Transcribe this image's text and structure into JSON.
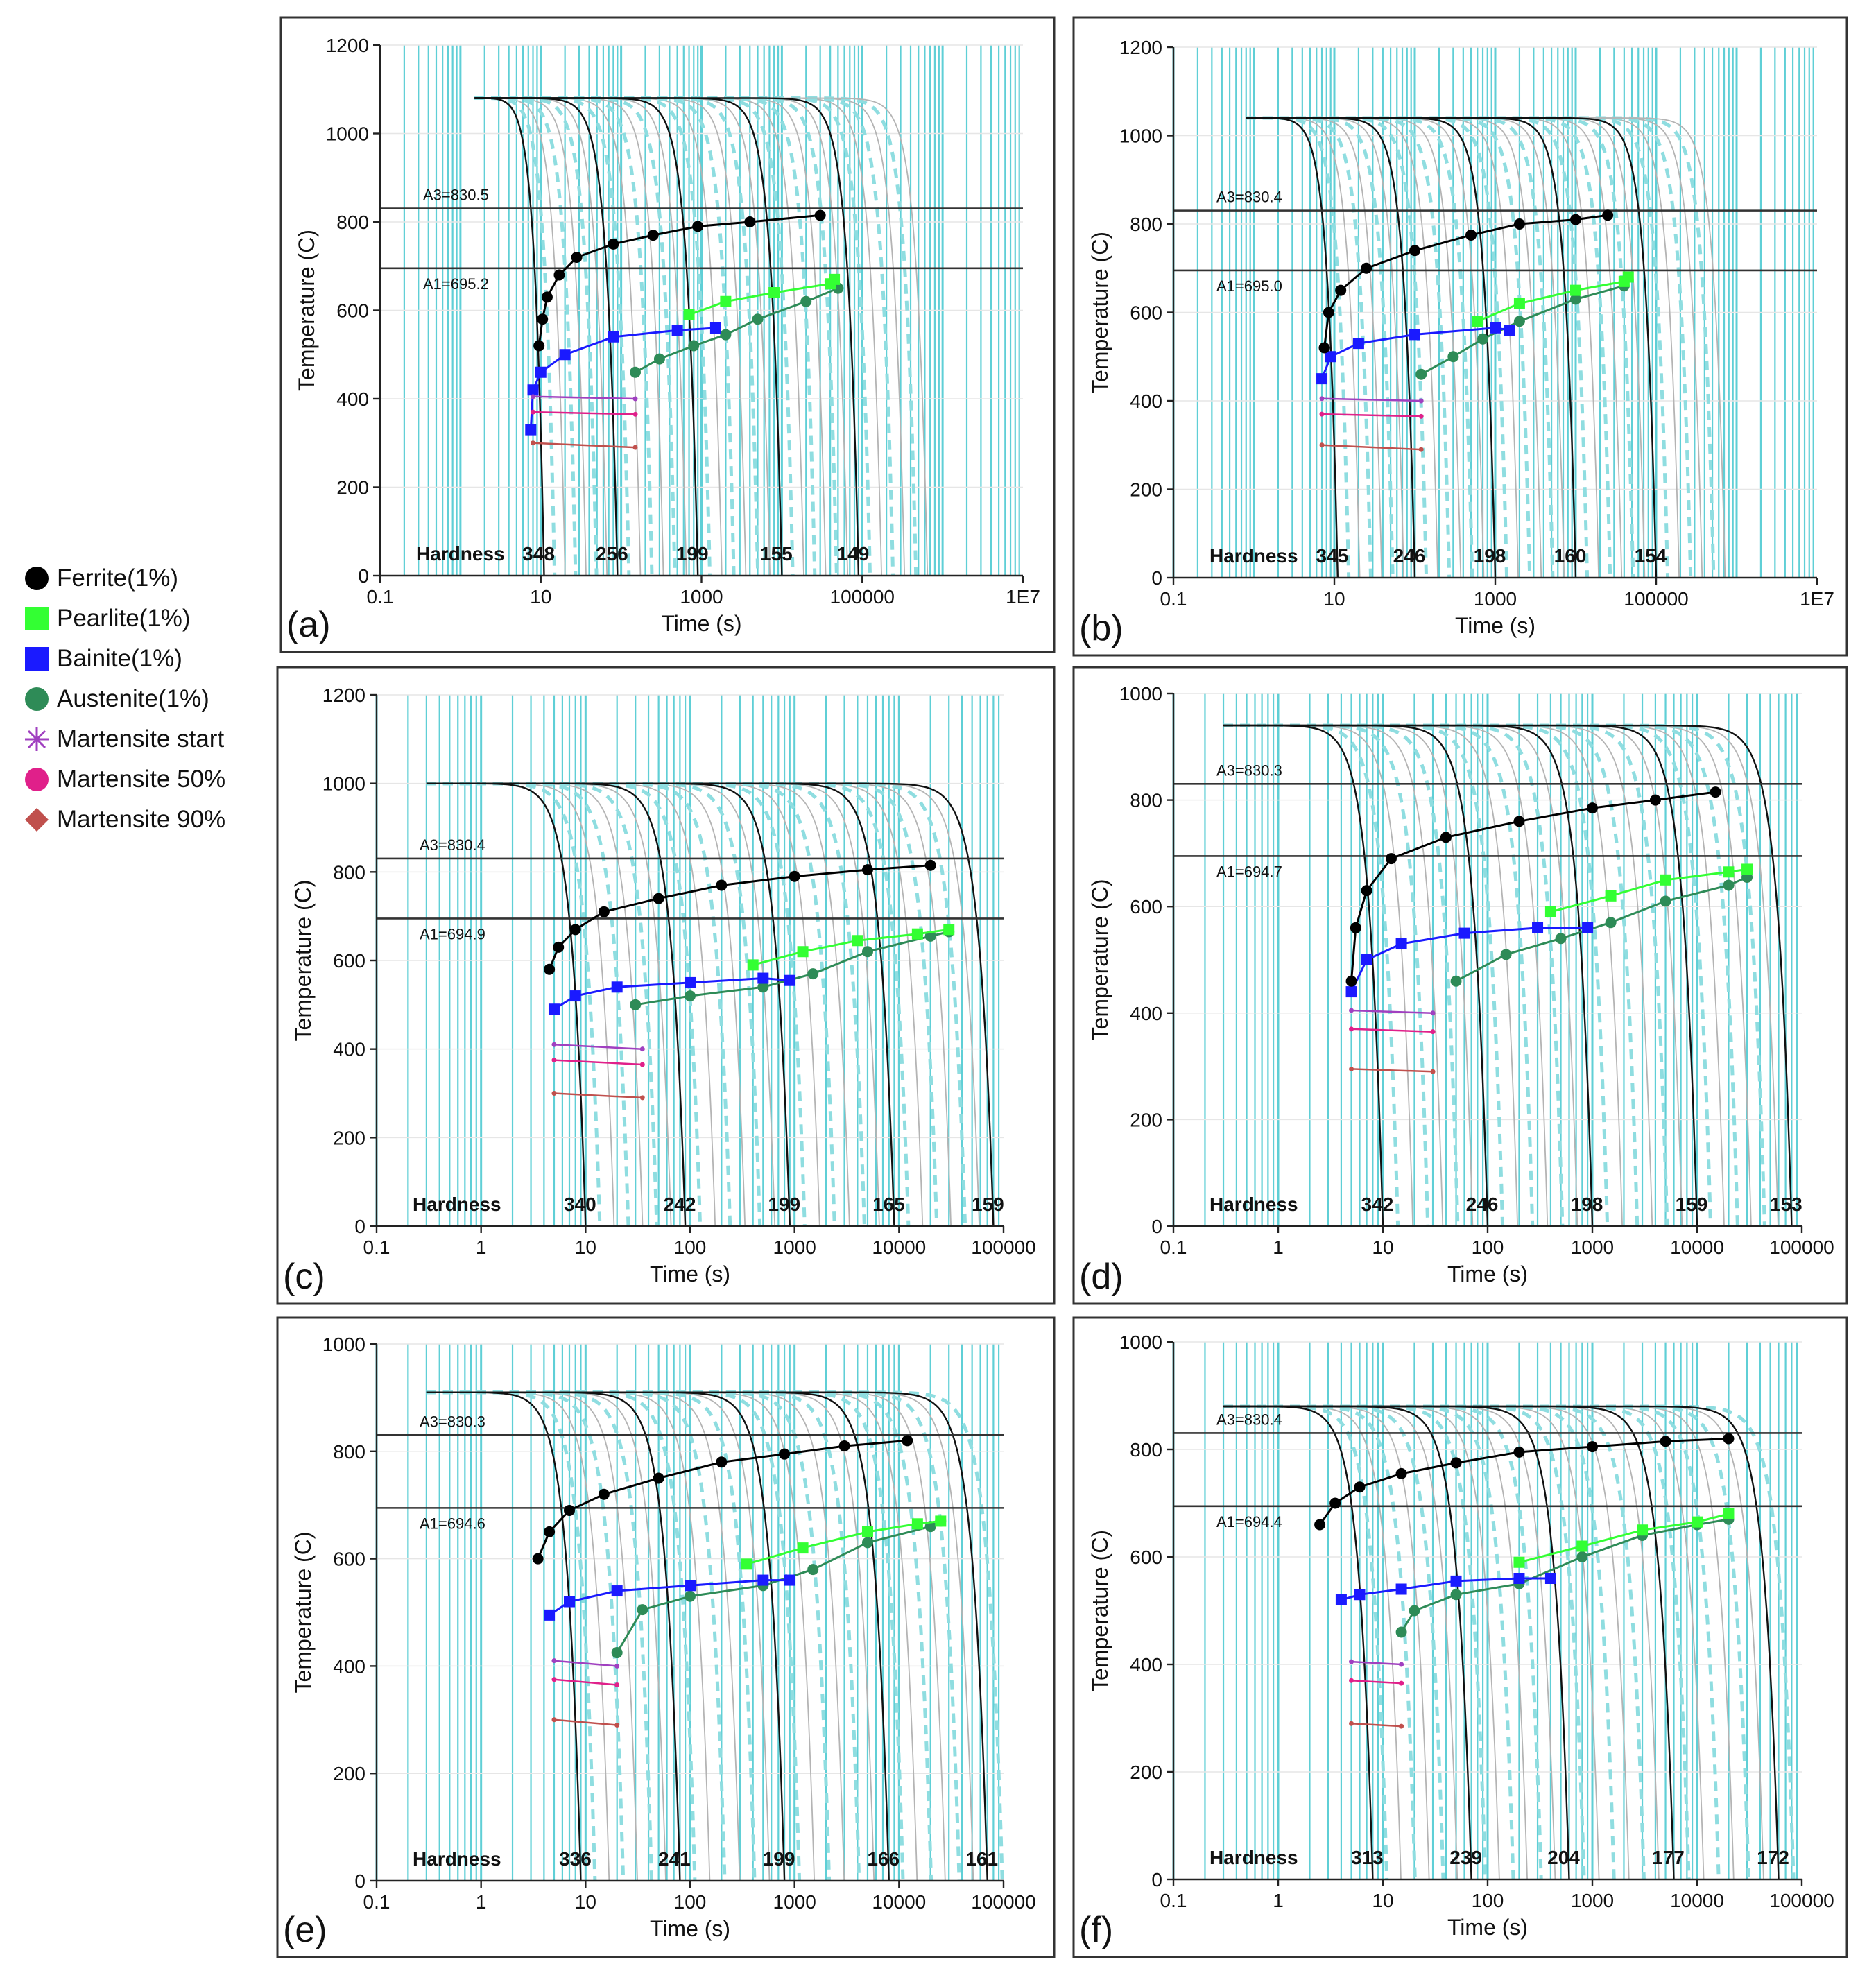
{
  "colors": {
    "ferrite": "#000000",
    "pearlite": "#33ff33",
    "bainite": "#1a1aff",
    "austenite": "#2e8b57",
    "ms_start": "#a040c0",
    "ms_50": "#e0208a",
    "ms_90": "#c0504d",
    "grid": "#5fcfd6",
    "cooling": "#b4b4b4",
    "cooling_dash": "#8fdde0",
    "frame": "#222222",
    "panel_border": "#333333"
  },
  "legend": [
    {
      "label": "Ferrite(1%)",
      "key": "ferrite",
      "shape": "circle"
    },
    {
      "label": "Pearlite(1%)",
      "key": "pearlite",
      "shape": "square"
    },
    {
      "label": "Bainite(1%)",
      "key": "bainite",
      "shape": "square"
    },
    {
      "label": "Austenite(1%)",
      "key": "austenite",
      "shape": "circle"
    },
    {
      "label": "Martensite start",
      "key": "ms_start",
      "shape": "star"
    },
    {
      "label": "Martensite 50%",
      "key": "ms_50",
      "shape": "circle"
    },
    {
      "label": "Martensite 90%",
      "key": "ms_90",
      "shape": "diamond"
    }
  ],
  "chart_data": [
    {
      "id": "a",
      "panel_label": "(a)",
      "type": "line",
      "xlabel": "Time (s)",
      "ylabel": "Temperature (C)",
      "xscale": "log",
      "xlim": [
        0.1,
        10000000
      ],
      "ylim": [
        0,
        1200
      ],
      "xticks": [
        0.1,
        10,
        1000,
        100000,
        10000000
      ],
      "xtick_labels": [
        "0.1",
        "10",
        "1000",
        "100000",
        "1E7"
      ],
      "yticks": [
        0,
        200,
        400,
        600,
        800,
        1000,
        1200
      ],
      "A3": 830.5,
      "A3_label": "A3=830.5",
      "A1": 695.2,
      "A1_label": "A1=695.2",
      "hardness_label": "Hardness",
      "hardness": [
        "348",
        "256",
        "199",
        "155",
        "149"
      ],
      "t_start": 1.5,
      "T_start": 1080,
      "cooling_end_times": [
        11,
        90,
        900,
        10000,
        90000
      ],
      "ferrite": [
        [
          9.5,
          520
        ],
        [
          10.5,
          580
        ],
        [
          12,
          630
        ],
        [
          17,
          680
        ],
        [
          28,
          720
        ],
        [
          80,
          750
        ],
        [
          250,
          770
        ],
        [
          900,
          790
        ],
        [
          4000,
          800
        ],
        [
          30000,
          815
        ]
      ],
      "bainite": [
        [
          7.5,
          330
        ],
        [
          8,
          420
        ],
        [
          10,
          460
        ],
        [
          20,
          500
        ],
        [
          80,
          540
        ],
        [
          500,
          555
        ],
        [
          1500,
          560
        ]
      ],
      "pearlite": [
        [
          700,
          590
        ],
        [
          2000,
          620
        ],
        [
          8000,
          640
        ],
        [
          40000,
          660
        ],
        [
          45000,
          670
        ]
      ],
      "austenite": [
        [
          150,
          460
        ],
        [
          300,
          490
        ],
        [
          800,
          520
        ],
        [
          2000,
          545
        ],
        [
          5000,
          580
        ],
        [
          20000,
          620
        ],
        [
          50000,
          650
        ]
      ],
      "ms_start": [
        [
          8,
          405
        ],
        [
          150,
          400
        ]
      ],
      "ms_50": [
        [
          8,
          370
        ],
        [
          150,
          365
        ]
      ],
      "ms_90": [
        [
          8,
          300
        ],
        [
          150,
          290
        ]
      ]
    },
    {
      "id": "b",
      "panel_label": "(b)",
      "type": "line",
      "xlabel": "Time (s)",
      "ylabel": "Temperature (C)",
      "xscale": "log",
      "xlim": [
        0.1,
        10000000
      ],
      "ylim": [
        0,
        1200
      ],
      "xticks": [
        0.1,
        10,
        1000,
        100000,
        10000000
      ],
      "xtick_labels": [
        "0.1",
        "10",
        "1000",
        "100000",
        "1E7"
      ],
      "yticks": [
        0,
        200,
        400,
        600,
        800,
        1000,
        1200
      ],
      "A3": 830.4,
      "A3_label": "A3=830.4",
      "A1": 695.0,
      "A1_label": "A1=695.0",
      "hardness_label": "Hardness",
      "hardness": [
        "345",
        "246",
        "198",
        "160",
        "154"
      ],
      "t_start": 0.8,
      "T_start": 1040,
      "cooling_end_times": [
        11,
        100,
        1000,
        10000,
        100000
      ],
      "ferrite": [
        [
          7.5,
          520
        ],
        [
          8.5,
          600
        ],
        [
          12,
          650
        ],
        [
          25,
          700
        ],
        [
          100,
          740
        ],
        [
          500,
          775
        ],
        [
          2000,
          800
        ],
        [
          10000,
          810
        ],
        [
          25000,
          820
        ]
      ],
      "bainite": [
        [
          7,
          450
        ],
        [
          9,
          500
        ],
        [
          20,
          530
        ],
        [
          100,
          550
        ],
        [
          1000,
          565
        ],
        [
          1500,
          560
        ]
      ],
      "pearlite": [
        [
          600,
          580
        ],
        [
          2000,
          620
        ],
        [
          10000,
          650
        ],
        [
          40000,
          670
        ],
        [
          45000,
          680
        ]
      ],
      "austenite": [
        [
          120,
          460
        ],
        [
          300,
          500
        ],
        [
          700,
          540
        ],
        [
          2000,
          580
        ],
        [
          10000,
          630
        ],
        [
          40000,
          660
        ]
      ],
      "ms_start": [
        [
          7,
          405
        ],
        [
          120,
          400
        ]
      ],
      "ms_50": [
        [
          7,
          370
        ],
        [
          120,
          365
        ]
      ],
      "ms_90": [
        [
          7,
          300
        ],
        [
          120,
          290
        ]
      ]
    },
    {
      "id": "c",
      "panel_label": "(c)",
      "type": "line",
      "xlabel": "Time (s)",
      "ylabel": "Temperature (C)",
      "xscale": "log",
      "xlim": [
        0.1,
        100000
      ],
      "ylim": [
        0,
        1200
      ],
      "xticks": [
        0.1,
        1,
        10,
        100,
        1000,
        10000,
        100000
      ],
      "xtick_labels": [
        "0.1",
        "1",
        "10",
        "100",
        "1000",
        "10000",
        "100000"
      ],
      "yticks": [
        0,
        200,
        400,
        600,
        800,
        1000,
        1200
      ],
      "A3": 830.4,
      "A3_label": "A3=830.4",
      "A1": 694.9,
      "A1_label": "A1=694.9",
      "hardness_label": "Hardness",
      "hardness": [
        "340",
        "242",
        "199",
        "165",
        "159"
      ],
      "t_start": 0.3,
      "T_start": 1000,
      "cooling_end_times": [
        10,
        90,
        900,
        9000,
        80000
      ],
      "ferrite": [
        [
          4.5,
          580
        ],
        [
          5.5,
          630
        ],
        [
          8,
          670
        ],
        [
          15,
          710
        ],
        [
          50,
          740
        ],
        [
          200,
          770
        ],
        [
          1000,
          790
        ],
        [
          5000,
          805
        ],
        [
          20000,
          815
        ]
      ],
      "bainite": [
        [
          5,
          490
        ],
        [
          8,
          520
        ],
        [
          20,
          540
        ],
        [
          100,
          550
        ],
        [
          500,
          560
        ],
        [
          900,
          555
        ]
      ],
      "pearlite": [
        [
          400,
          590
        ],
        [
          1200,
          620
        ],
        [
          4000,
          645
        ],
        [
          15000,
          660
        ],
        [
          30000,
          670
        ]
      ],
      "austenite": [
        [
          30,
          500
        ],
        [
          100,
          520
        ],
        [
          500,
          540
        ],
        [
          1500,
          570
        ],
        [
          5000,
          620
        ],
        [
          20000,
          655
        ],
        [
          30000,
          665
        ]
      ],
      "ms_start": [
        [
          5,
          410
        ],
        [
          35,
          400
        ]
      ],
      "ms_50": [
        [
          5,
          375
        ],
        [
          35,
          365
        ]
      ],
      "ms_90": [
        [
          5,
          300
        ],
        [
          35,
          290
        ]
      ]
    },
    {
      "id": "d",
      "panel_label": "(d)",
      "type": "line",
      "xlabel": "Time (s)",
      "ylabel": "Temperature (C)",
      "xscale": "log",
      "xlim": [
        0.1,
        100000
      ],
      "ylim": [
        0,
        1000
      ],
      "xticks": [
        0.1,
        1,
        10,
        100,
        1000,
        10000,
        100000
      ],
      "xtick_labels": [
        "0.1",
        "1",
        "10",
        "100",
        "1000",
        "10000",
        "100000"
      ],
      "yticks": [
        0,
        200,
        400,
        600,
        800,
        1000
      ],
      "A3": 830.3,
      "A3_label": "A3=830.3",
      "A1": 694.7,
      "A1_label": "A1=694.7",
      "hardness_label": "Hardness",
      "hardness": [
        "342",
        "246",
        "198",
        "159",
        "153"
      ],
      "t_start": 0.3,
      "T_start": 940,
      "cooling_end_times": [
        10,
        100,
        1000,
        10000,
        80000
      ],
      "ferrite": [
        [
          5,
          460
        ],
        [
          5.5,
          560
        ],
        [
          7,
          630
        ],
        [
          12,
          690
        ],
        [
          40,
          730
        ],
        [
          200,
          760
        ],
        [
          1000,
          785
        ],
        [
          4000,
          800
        ],
        [
          15000,
          815
        ]
      ],
      "bainite": [
        [
          5,
          440
        ],
        [
          7,
          500
        ],
        [
          15,
          530
        ],
        [
          60,
          550
        ],
        [
          300,
          560
        ],
        [
          900,
          560
        ]
      ],
      "pearlite": [
        [
          400,
          590
        ],
        [
          1500,
          620
        ],
        [
          5000,
          650
        ],
        [
          20000,
          665
        ],
        [
          30000,
          670
        ]
      ],
      "austenite": [
        [
          50,
          460
        ],
        [
          150,
          510
        ],
        [
          500,
          540
        ],
        [
          1500,
          570
        ],
        [
          5000,
          610
        ],
        [
          20000,
          640
        ],
        [
          30000,
          655
        ]
      ],
      "ms_start": [
        [
          5,
          405
        ],
        [
          30,
          400
        ]
      ],
      "ms_50": [
        [
          5,
          370
        ],
        [
          30,
          365
        ]
      ],
      "ms_90": [
        [
          5,
          295
        ],
        [
          30,
          290
        ]
      ]
    },
    {
      "id": "e",
      "panel_label": "(e)",
      "type": "line",
      "xlabel": "Time (s)",
      "ylabel": "Temperature (C)",
      "xscale": "log",
      "xlim": [
        0.1,
        100000
      ],
      "ylim": [
        0,
        1000
      ],
      "xticks": [
        0.1,
        1,
        10,
        100,
        1000,
        10000,
        100000
      ],
      "xtick_labels": [
        "0.1",
        "1",
        "10",
        "100",
        "1000",
        "10000",
        "100000"
      ],
      "yticks": [
        0,
        200,
        400,
        600,
        800,
        1000
      ],
      "A3": 830.3,
      "A3_label": "A3=830.3",
      "A1": 694.6,
      "A1_label": "A1=694.6",
      "hardness_label": "Hardness",
      "hardness": [
        "336",
        "241",
        "199",
        "166",
        "161"
      ],
      "t_start": 0.3,
      "T_start": 910,
      "cooling_end_times": [
        9,
        80,
        800,
        8000,
        70000
      ],
      "ferrite": [
        [
          3.5,
          600
        ],
        [
          4.5,
          650
        ],
        [
          7,
          690
        ],
        [
          15,
          720
        ],
        [
          50,
          750
        ],
        [
          200,
          780
        ],
        [
          800,
          795
        ],
        [
          3000,
          810
        ],
        [
          12000,
          820
        ]
      ],
      "bainite": [
        [
          4.5,
          495
        ],
        [
          7,
          520
        ],
        [
          20,
          540
        ],
        [
          100,
          550
        ],
        [
          500,
          560
        ],
        [
          900,
          560
        ]
      ],
      "pearlite": [
        [
          350,
          590
        ],
        [
          1200,
          620
        ],
        [
          5000,
          650
        ],
        [
          15000,
          665
        ],
        [
          25000,
          670
        ]
      ],
      "austenite": [
        [
          20,
          425
        ],
        [
          35,
          505
        ],
        [
          100,
          530
        ],
        [
          500,
          550
        ],
        [
          1500,
          580
        ],
        [
          5000,
          630
        ],
        [
          20000,
          660
        ],
        [
          25000,
          670
        ]
      ],
      "ms_start": [
        [
          5,
          410
        ],
        [
          20,
          400
        ]
      ],
      "ms_50": [
        [
          5,
          375
        ],
        [
          20,
          365
        ]
      ],
      "ms_90": [
        [
          5,
          300
        ],
        [
          20,
          290
        ]
      ]
    },
    {
      "id": "f",
      "panel_label": "(f)",
      "type": "line",
      "xlabel": "Time (s)",
      "ylabel": "Temperature (C)",
      "xscale": "log",
      "xlim": [
        0.1,
        100000
      ],
      "ylim": [
        0,
        1000
      ],
      "xticks": [
        0.1,
        1,
        10,
        100,
        1000,
        10000,
        100000
      ],
      "xtick_labels": [
        "0.1",
        "1",
        "10",
        "100",
        "1000",
        "10000",
        "100000"
      ],
      "yticks": [
        0,
        200,
        400,
        600,
        800,
        1000
      ],
      "A3": 830.4,
      "A3_label": "A3=830.4",
      "A1": 694.4,
      "A1_label": "A1=694.4",
      "hardness_label": "Hardness",
      "hardness": [
        "313",
        "239",
        "204",
        "177",
        "172"
      ],
      "t_start": 0.3,
      "T_start": 880,
      "cooling_end_times": [
        8,
        70,
        600,
        6000,
        60000
      ],
      "ferrite": [
        [
          2.5,
          660
        ],
        [
          3.5,
          700
        ],
        [
          6,
          730
        ],
        [
          15,
          755
        ],
        [
          50,
          775
        ],
        [
          200,
          795
        ],
        [
          1000,
          805
        ],
        [
          5000,
          815
        ],
        [
          20000,
          820
        ]
      ],
      "bainite": [
        [
          4,
          520
        ],
        [
          6,
          530
        ],
        [
          15,
          540
        ],
        [
          50,
          555
        ],
        [
          200,
          560
        ],
        [
          400,
          560
        ]
      ],
      "pearlite": [
        [
          200,
          590
        ],
        [
          800,
          620
        ],
        [
          3000,
          650
        ],
        [
          10000,
          665
        ],
        [
          20000,
          680
        ]
      ],
      "austenite": [
        [
          15,
          460
        ],
        [
          20,
          500
        ],
        [
          50,
          530
        ],
        [
          200,
          550
        ],
        [
          800,
          600
        ],
        [
          3000,
          640
        ],
        [
          10000,
          660
        ],
        [
          20000,
          670
        ]
      ],
      "ms_start": [
        [
          5,
          405
        ],
        [
          15,
          400
        ]
      ],
      "ms_50": [
        [
          5,
          370
        ],
        [
          15,
          365
        ]
      ],
      "ms_90": [
        [
          5,
          290
        ],
        [
          15,
          285
        ]
      ]
    }
  ]
}
